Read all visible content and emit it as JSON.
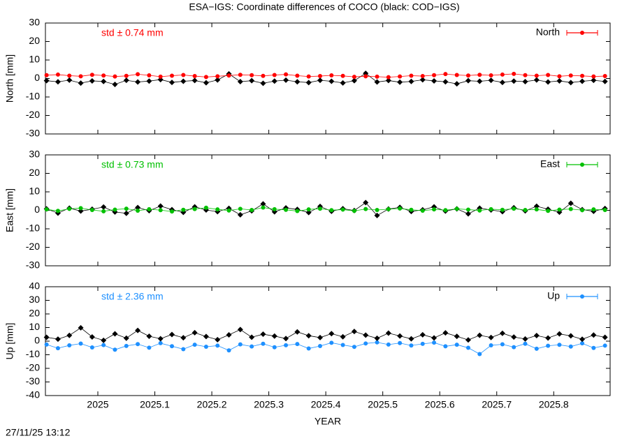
{
  "title": "ESA−IGS: Coordinate differences of COCO (black: COD−IGS)",
  "timestamp": "27/11/25 13:12",
  "chart_data": [
    {
      "type": "line",
      "ylabel": "North [mm]",
      "annotation": "std ± 0.74 mm",
      "x": [
        2024.91,
        2024.93,
        2024.95,
        2024.97,
        2024.99,
        2025.01,
        2025.03,
        2025.05,
        2025.07,
        2025.09,
        2025.11,
        2025.13,
        2025.15,
        2025.17,
        2025.19,
        2025.21,
        2025.23,
        2025.25,
        2025.27,
        2025.29,
        2025.31,
        2025.33,
        2025.35,
        2025.37,
        2025.39,
        2025.41,
        2025.43,
        2025.45,
        2025.47,
        2025.49,
        2025.51,
        2025.53,
        2025.55,
        2025.57,
        2025.59,
        2025.61,
        2025.63,
        2025.65,
        2025.67,
        2025.69,
        2025.71,
        2025.73,
        2025.75,
        2025.77,
        2025.79,
        2025.81,
        2025.83,
        2025.85,
        2025.87,
        2025.89
      ],
      "xlim": [
        2024.908,
        2025.899
      ],
      "xticks": [
        2025,
        2025.1,
        2025.2,
        2025.3,
        2025.4,
        2025.5,
        2025.6,
        2025.7,
        2025.8
      ],
      "ylim": [
        -30,
        30
      ],
      "yticks": [
        -30,
        -20,
        -10,
        0,
        10,
        20,
        30
      ],
      "series": [
        {
          "color": "#000000",
          "values": [
            -1.2,
            -1.8,
            -0.9,
            -2.5,
            -1.3,
            -1.6,
            -3.2,
            -1.0,
            -1.9,
            -1.4,
            -0.6,
            -2.1,
            -1.5,
            -1.1,
            -2.3,
            -0.8,
            2.5,
            -1.7,
            -1.2,
            -2.6,
            -1.4,
            -0.9,
            -1.8,
            -2.2,
            -1.0,
            -1.5,
            -2.4,
            -1.2,
            2.8,
            -1.9,
            -1.1,
            -2.0,
            -1.6,
            -0.7,
            -1.3,
            -1.8,
            -2.9,
            -1.2,
            -1.5,
            -1.0,
            -2.1,
            -1.4,
            -1.7,
            -0.8,
            -1.9,
            -1.3,
            -2.2,
            -1.5,
            -1.0,
            -1.6
          ]
        },
        {
          "name": "North",
          "color": "#ff0000",
          "values": [
            1.8,
            2.1,
            1.5,
            1.2,
            2.0,
            1.6,
            1.1,
            1.4,
            2.3,
            1.7,
            1.0,
            1.5,
            1.9,
            1.3,
            0.8,
            1.2,
            1.6,
            2.0,
            1.8,
            1.4,
            1.9,
            2.2,
            1.5,
            1.1,
            1.3,
            1.7,
            1.4,
            0.9,
            1.2,
            1.0,
            0.7,
            1.1,
            1.5,
            1.3,
            1.8,
            2.4,
            1.9,
            1.6,
            2.0,
            1.7,
            2.1,
            2.5,
            1.8,
            1.5,
            1.9,
            1.2,
            1.6,
            1.4,
            1.1,
            1.3
          ]
        }
      ]
    },
    {
      "type": "line",
      "ylabel": "East [mm]",
      "annotation": "std ± 0.73 mm",
      "x": [
        2024.91,
        2024.93,
        2024.95,
        2024.97,
        2024.99,
        2025.01,
        2025.03,
        2025.05,
        2025.07,
        2025.09,
        2025.11,
        2025.13,
        2025.15,
        2025.17,
        2025.19,
        2025.21,
        2025.23,
        2025.25,
        2025.27,
        2025.29,
        2025.31,
        2025.33,
        2025.35,
        2025.37,
        2025.39,
        2025.41,
        2025.43,
        2025.45,
        2025.47,
        2025.49,
        2025.51,
        2025.53,
        2025.55,
        2025.57,
        2025.59,
        2025.61,
        2025.63,
        2025.65,
        2025.67,
        2025.69,
        2025.71,
        2025.73,
        2025.75,
        2025.77,
        2025.79,
        2025.81,
        2025.83,
        2025.85,
        2025.87,
        2025.89
      ],
      "xlim": [
        2024.908,
        2025.899
      ],
      "xticks": [
        2025,
        2025.1,
        2025.2,
        2025.3,
        2025.4,
        2025.5,
        2025.6,
        2025.7,
        2025.8
      ],
      "ylim": [
        -30,
        30
      ],
      "yticks": [
        -30,
        -20,
        -10,
        0,
        10,
        20,
        30
      ],
      "series": [
        {
          "color": "#000000",
          "values": [
            0.8,
            -1.5,
            1.2,
            -0.4,
            0.6,
            1.8,
            -0.9,
            -1.6,
            1.5,
            -0.2,
            2.3,
            0.4,
            -1.1,
            1.9,
            0.2,
            -0.7,
            1.1,
            -2.4,
            -0.3,
            3.5,
            -0.8,
            1.3,
            0.5,
            -1.2,
            2.1,
            -0.5,
            0.9,
            -0.1,
            4.2,
            -2.8,
            0.7,
            1.6,
            -0.6,
            0.3,
            1.9,
            -0.4,
            0.8,
            -1.9,
            1.2,
            0.2,
            -0.7,
            1.4,
            -0.3,
            2.2,
            0.6,
            -1.0,
            3.8,
            0.4,
            -0.5,
            1.0
          ]
        },
        {
          "name": "East",
          "color": "#00c000",
          "values": [
            0.5,
            -0.3,
            0.8,
            1.2,
            0.2,
            -0.5,
            0.4,
            0.9,
            -0.2,
            0.6,
            0.1,
            -0.6,
            0.3,
            0.7,
            1.4,
            0.5,
            -0.1,
            0.8,
            0.2,
            1.5,
            0.6,
            0.3,
            -0.4,
            0.5,
            0.9,
            0.1,
            0.4,
            -0.3,
            0.7,
            0.2,
            0.6,
            1.0,
            0.3,
            -0.2,
            0.5,
            0.1,
            0.8,
            0.4,
            -0.1,
            0.6,
            0.3,
            0.9,
            0.2,
            0.5,
            -0.3,
            0.4,
            0.7,
            0.1,
            0.5,
            0.2
          ]
        }
      ]
    },
    {
      "type": "line",
      "ylabel": "Up [mm]",
      "annotation": "std ± 2.36 mm",
      "xlabel": "YEAR",
      "x": [
        2024.91,
        2024.93,
        2024.95,
        2024.97,
        2024.99,
        2025.01,
        2025.03,
        2025.05,
        2025.07,
        2025.09,
        2025.11,
        2025.13,
        2025.15,
        2025.17,
        2025.19,
        2025.21,
        2025.23,
        2025.25,
        2025.27,
        2025.29,
        2025.31,
        2025.33,
        2025.35,
        2025.37,
        2025.39,
        2025.41,
        2025.43,
        2025.45,
        2025.47,
        2025.49,
        2025.51,
        2025.53,
        2025.55,
        2025.57,
        2025.59,
        2025.61,
        2025.63,
        2025.65,
        2025.67,
        2025.69,
        2025.71,
        2025.73,
        2025.75,
        2025.77,
        2025.79,
        2025.81,
        2025.83,
        2025.85,
        2025.87,
        2025.89
      ],
      "xlim": [
        2024.908,
        2025.899
      ],
      "xticks": [
        2025,
        2025.1,
        2025.2,
        2025.3,
        2025.4,
        2025.5,
        2025.6,
        2025.7,
        2025.8
      ],
      "ylim": [
        -40,
        40
      ],
      "yticks": [
        -40,
        -30,
        -20,
        -10,
        0,
        10,
        20,
        30,
        40
      ],
      "series": [
        {
          "name": "Up",
          "color": "#1e90ff",
          "values": [
            -2.5,
            -5.2,
            -3.1,
            -1.8,
            -4.6,
            -2.9,
            -6.3,
            -3.5,
            -2.2,
            -4.8,
            -1.5,
            -3.7,
            -5.9,
            -2.6,
            -4.1,
            -3.3,
            -6.8,
            -2.4,
            -3.9,
            -1.9,
            -4.5,
            -3.0,
            -2.1,
            -5.4,
            -3.6,
            -1.2,
            -2.8,
            -4.2,
            -1.7,
            -0.9,
            -2.5,
            -1.4,
            -3.2,
            -2.0,
            -1.1,
            -3.8,
            -2.6,
            -4.9,
            -9.5,
            -3.1,
            -2.3,
            -4.4,
            -1.9,
            -5.6,
            -3.4,
            -2.7,
            -4.0,
            -1.6,
            -5.0,
            -3.3
          ]
        },
        {
          "color": "#000000",
          "values": [
            2.8,
            1.5,
            4.2,
            9.8,
            3.1,
            0.6,
            5.4,
            2.2,
            7.9,
            3.6,
            1.8,
            4.9,
            2.5,
            6.2,
            3.4,
            1.1,
            4.6,
            8.5,
            2.9,
            5.1,
            3.7,
            1.9,
            6.8,
            4.0,
            2.6,
            5.5,
            3.2,
            7.1,
            4.4,
            2.1,
            5.9,
            3.8,
            1.7,
            4.7,
            2.4,
            6.1,
            3.5,
            0.9,
            4.3,
            2.7,
            5.8,
            3.0,
            1.6,
            4.1,
            2.3,
            5.3,
            3.9,
            1.4,
            4.5,
            2.8
          ]
        }
      ]
    }
  ]
}
